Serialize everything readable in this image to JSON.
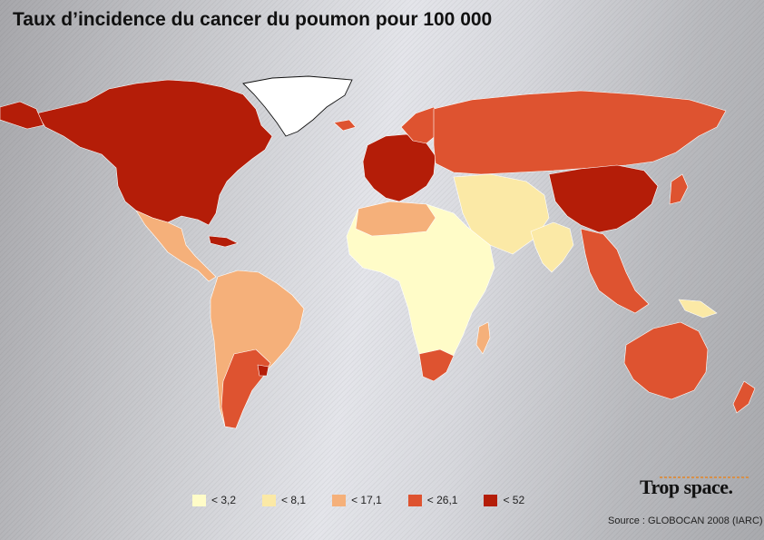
{
  "title": "Taux d’incidence du cancer du poumon pour 100 000",
  "legend": {
    "items": [
      {
        "label": "< 3,2",
        "color": "#fffcc8"
      },
      {
        "label": "< 8,1",
        "color": "#fbe9a6"
      },
      {
        "label": "< 17,1",
        "color": "#f5b07a"
      },
      {
        "label": "< 26,1",
        "color": "#de5330"
      },
      {
        "label": "< 52",
        "color": "#b41d08"
      }
    ]
  },
  "brand": "Trop space.",
  "source": "Source : GLOBOCAN 2008 (IARC)"
}
